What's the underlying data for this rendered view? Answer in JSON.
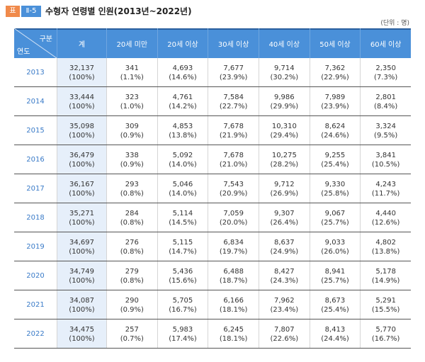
{
  "header": {
    "label_box": "표",
    "number_box": "Ⅱ-5",
    "title": "수형자 연령별 인원(2013년~2022년)"
  },
  "unit": "(단위 : 명)",
  "table": {
    "corner_top": "구분",
    "corner_bottom": "연도",
    "columns": [
      "계",
      "20세 미만",
      "20세 이상",
      "30세 이상",
      "40세 이상",
      "50세 이상",
      "60세 이상"
    ],
    "rows": [
      {
        "year": "2013",
        "cells": [
          [
            "32,137",
            "(100%)"
          ],
          [
            "341",
            "(1.1%)"
          ],
          [
            "4,693",
            "(14.6%)"
          ],
          [
            "7,677",
            "(23.9%)"
          ],
          [
            "9,714",
            "(30.2%)"
          ],
          [
            "7,362",
            "(22.9%)"
          ],
          [
            "2,350",
            "(7.3%)"
          ]
        ]
      },
      {
        "year": "2014",
        "cells": [
          [
            "33,444",
            "(100%)"
          ],
          [
            "323",
            "(1.0%)"
          ],
          [
            "4,761",
            "(14.2%)"
          ],
          [
            "7,584",
            "(22.7%)"
          ],
          [
            "9,986",
            "(29.9%)"
          ],
          [
            "7,989",
            "(23.9%)"
          ],
          [
            "2,801",
            "(8.4%)"
          ]
        ]
      },
      {
        "year": "2015",
        "cells": [
          [
            "35,098",
            "(100%)"
          ],
          [
            "309",
            "(0.9%)"
          ],
          [
            "4,853",
            "(13.8%)"
          ],
          [
            "7,678",
            "(21.9%)"
          ],
          [
            "10,310",
            "(29.4%)"
          ],
          [
            "8,624",
            "(24.6%)"
          ],
          [
            "3,324",
            "(9.5%)"
          ]
        ]
      },
      {
        "year": "2016",
        "cells": [
          [
            "36,479",
            "(100%)"
          ],
          [
            "338",
            "(0.9%)"
          ],
          [
            "5,092",
            "(14.0%)"
          ],
          [
            "7,678",
            "(21.0%)"
          ],
          [
            "10,275",
            "(28.2%)"
          ],
          [
            "9,255",
            "(25.4%)"
          ],
          [
            "3,841",
            "(10.5%)"
          ]
        ]
      },
      {
        "year": "2017",
        "cells": [
          [
            "36,167",
            "(100%)"
          ],
          [
            "293",
            "(0.8%)"
          ],
          [
            "5,046",
            "(14.0%)"
          ],
          [
            "7,543",
            "(20.9%)"
          ],
          [
            "9,712",
            "(26.9%)"
          ],
          [
            "9,330",
            "(25.8%)"
          ],
          [
            "4,243",
            "(11.7%)"
          ]
        ]
      },
      {
        "year": "2018",
        "cells": [
          [
            "35,271",
            "(100%)"
          ],
          [
            "284",
            "(0.8%)"
          ],
          [
            "5,114",
            "(14.5%)"
          ],
          [
            "7,059",
            "(20.0%)"
          ],
          [
            "9,307",
            "(26.4%)"
          ],
          [
            "9,067",
            "(25.7%)"
          ],
          [
            "4,440",
            "(12.6%)"
          ]
        ]
      },
      {
        "year": "2019",
        "cells": [
          [
            "34,697",
            "(100%)"
          ],
          [
            "276",
            "(0.8%)"
          ],
          [
            "5,115",
            "(14.7%)"
          ],
          [
            "6,834",
            "(19.7%)"
          ],
          [
            "8,637",
            "(24.9%)"
          ],
          [
            "9,033",
            "(26.0%)"
          ],
          [
            "4,802",
            "(13.8%)"
          ]
        ]
      },
      {
        "year": "2020",
        "cells": [
          [
            "34,749",
            "(100%)"
          ],
          [
            "279",
            "(0.8%)"
          ],
          [
            "5,436",
            "(15.6%)"
          ],
          [
            "6,488",
            "(18.7%)"
          ],
          [
            "8,427",
            "(24.3%)"
          ],
          [
            "8,941",
            "(25.7%)"
          ],
          [
            "5,178",
            "(14.9%)"
          ]
        ]
      },
      {
        "year": "2021",
        "cells": [
          [
            "34,087",
            "(100%)"
          ],
          [
            "290",
            "(0.9%)"
          ],
          [
            "5,705",
            "(16.7%)"
          ],
          [
            "6,166",
            "(18.1%)"
          ],
          [
            "7,962",
            "(23.4%)"
          ],
          [
            "8,673",
            "(25.4%)"
          ],
          [
            "5,291",
            "(15.5%)"
          ]
        ]
      },
      {
        "year": "2022",
        "cells": [
          [
            "34,475",
            "(100%)"
          ],
          [
            "257",
            "(0.7%)"
          ],
          [
            "5,983",
            "(17.4%)"
          ],
          [
            "6,245",
            "(18.1%)"
          ],
          [
            "7,807",
            "(22.6%)"
          ],
          [
            "8,413",
            "(24.4%)"
          ],
          [
            "5,770",
            "(16.7%)"
          ]
        ]
      }
    ]
  }
}
